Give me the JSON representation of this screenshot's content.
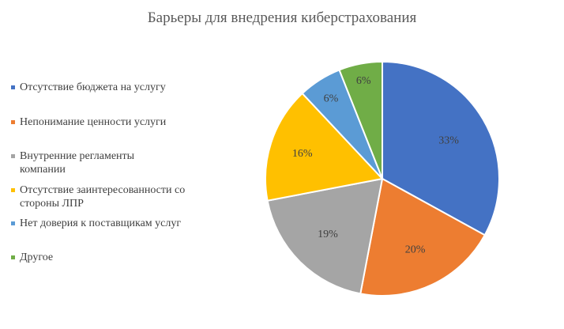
{
  "chart_data": {
    "type": "pie",
    "title": "Барьеры для внедрения киберстрахования",
    "legend_position": "left",
    "categories": [
      "Отсутствие бюджета на услугу",
      "Непонимание ценности услуги",
      "Внутренние регламенты компании",
      "Отсутствие заинтересованности со стороны ЛПР",
      "Нет доверия к поставщикам услуг",
      "Другое"
    ],
    "values": [
      33,
      20,
      19,
      16,
      6,
      6
    ],
    "value_labels": [
      "33%",
      "20%",
      "19%",
      "16%",
      "6%",
      "6%"
    ],
    "colors": [
      "#4472C4",
      "#ED7D31",
      "#A5A5A5",
      "#FFC000",
      "#5B9BD5",
      "#70AD47"
    ]
  }
}
